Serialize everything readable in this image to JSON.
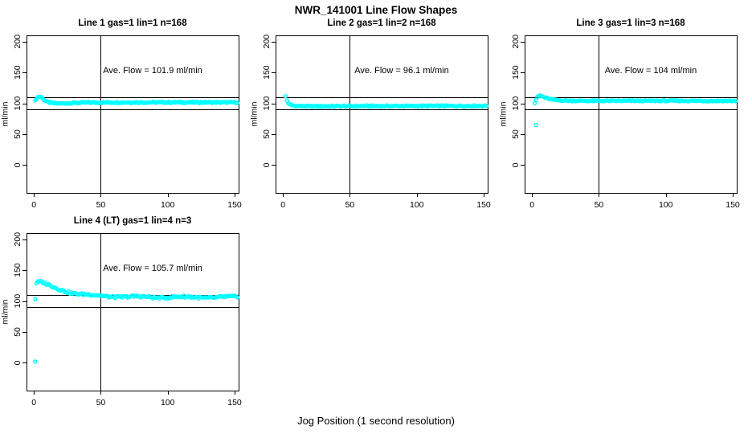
{
  "chart_data": {
    "type": "scatter",
    "suptitle": "NWR_141001  Line Flow Shapes",
    "xlabel": "Jog Position (1 second resolution)",
    "ylabel": "ml/min",
    "x_ticks": [
      0,
      50,
      100,
      150
    ],
    "y_ticks": [
      0,
      50,
      100,
      150,
      200
    ],
    "xlim": [
      -5.5,
      153
    ],
    "ylim": [
      -45,
      210
    ],
    "ref_lines": {
      "h": [
        90,
        110
      ],
      "v": [
        50
      ]
    },
    "point_color": "#00FFFF",
    "axis_color": "#000000",
    "grid": false,
    "legend": "none",
    "panels": [
      {
        "title": "Line 1 gas=1 lin=1 n=168",
        "line": 1,
        "gas": 1,
        "lin": 1,
        "n": 168,
        "annotation": "Ave. Flow =  101.9  ml/min",
        "ave_flow_ml_min": 101.9,
        "profile": [
          [
            1,
            104
          ],
          [
            2,
            107.5
          ],
          [
            3,
            110
          ],
          [
            4,
            111
          ],
          [
            5,
            110.5
          ],
          [
            6,
            109
          ],
          [
            7,
            107
          ],
          [
            8,
            105
          ],
          [
            9,
            103.5
          ],
          [
            10,
            102.5
          ],
          [
            12,
            101
          ],
          [
            15,
            100
          ],
          [
            20,
            99.8
          ],
          [
            28,
            100.6
          ],
          [
            40,
            101.2
          ],
          [
            60,
            101.5
          ],
          [
            90,
            101.6
          ],
          [
            120,
            101.5
          ],
          [
            152,
            101.5
          ]
        ],
        "outliers": [],
        "noise": 1.1,
        "wiggle": 0
      },
      {
        "title": "Line 2 gas=1 lin=2 n=168",
        "line": 2,
        "gas": 1,
        "lin": 2,
        "n": 168,
        "annotation": "Ave. Flow =  96.1  ml/min",
        "ave_flow_ml_min": 96.1,
        "profile": [
          [
            3,
            104.5
          ],
          [
            4,
            100.5
          ],
          [
            5,
            98.5
          ],
          [
            6,
            97.2
          ],
          [
            8,
            96.2
          ],
          [
            10,
            95.8
          ],
          [
            14,
            95.4
          ],
          [
            20,
            95.2
          ],
          [
            35,
            95.3
          ],
          [
            60,
            95.5
          ],
          [
            90,
            95.6
          ],
          [
            120,
            95.7
          ],
          [
            152,
            95.8
          ]
        ],
        "outliers": [
          [
            2,
            111.5
          ]
        ],
        "noise": 1.0,
        "wiggle": 0
      },
      {
        "title": "Line 3 gas=1 lin=3 n=168",
        "line": 3,
        "gas": 1,
        "lin": 3,
        "n": 168,
        "annotation": "Ave. Flow =  104  ml/min",
        "ave_flow_ml_min": 104,
        "profile": [
          [
            3,
            105.5
          ],
          [
            4,
            109.5
          ],
          [
            5,
            112
          ],
          [
            6,
            112.5
          ],
          [
            7,
            111.8
          ],
          [
            8,
            110.8
          ],
          [
            10,
            109
          ],
          [
            12,
            107.5
          ],
          [
            15,
            106
          ],
          [
            19,
            105
          ],
          [
            25,
            104.4
          ],
          [
            35,
            104
          ],
          [
            60,
            104
          ],
          [
            100,
            104.1
          ],
          [
            130,
            104
          ],
          [
            152,
            104
          ]
        ],
        "outliers": [
          [
            2,
            100
          ],
          [
            3,
            65
          ]
        ],
        "noise": 0.9,
        "wiggle": 0
      },
      {
        "title": "Line 4 (LT) gas=1 lin=4 n=3",
        "line": 4,
        "gas": 1,
        "lin": 4,
        "n": 3,
        "annotation": "Ave. Flow =  105.7  ml/min",
        "ave_flow_ml_min": 105.7,
        "profile": [
          [
            2,
            129
          ],
          [
            4,
            130.5
          ],
          [
            6,
            129.5
          ],
          [
            8,
            128
          ],
          [
            11,
            125.5
          ],
          [
            14,
            123
          ],
          [
            17,
            120.5
          ],
          [
            21,
            118
          ],
          [
            26,
            115
          ],
          [
            31,
            112.5
          ],
          [
            37,
            110.5
          ],
          [
            44,
            109
          ],
          [
            52,
            108
          ],
          [
            62,
            107.2
          ],
          [
            75,
            106.6
          ],
          [
            90,
            106.3
          ],
          [
            105,
            106.4
          ],
          [
            120,
            106
          ],
          [
            135,
            106.2
          ],
          [
            152,
            106
          ]
        ],
        "outliers": [
          [
            1,
            103
          ],
          [
            1,
            2
          ]
        ],
        "noise": 1.7,
        "wiggle": 1.1
      }
    ]
  }
}
